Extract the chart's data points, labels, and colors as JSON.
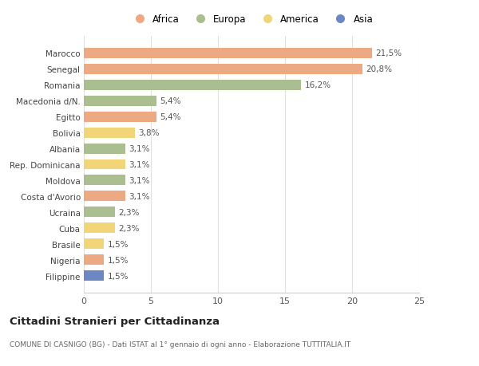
{
  "categories": [
    "Marocco",
    "Senegal",
    "Romania",
    "Macedonia d/N.",
    "Egitto",
    "Bolivia",
    "Albania",
    "Rep. Dominicana",
    "Moldova",
    "Costa d'Avorio",
    "Ucraina",
    "Cuba",
    "Brasile",
    "Nigeria",
    "Filippine"
  ],
  "values": [
    21.5,
    20.8,
    16.2,
    5.4,
    5.4,
    3.8,
    3.1,
    3.1,
    3.1,
    3.1,
    2.3,
    2.3,
    1.5,
    1.5,
    1.5
  ],
  "labels": [
    "21,5%",
    "20,8%",
    "16,2%",
    "5,4%",
    "5,4%",
    "3,8%",
    "3,1%",
    "3,1%",
    "3,1%",
    "3,1%",
    "2,3%",
    "2,3%",
    "1,5%",
    "1,5%",
    "1,5%"
  ],
  "continent": [
    "Africa",
    "Africa",
    "Europa",
    "Europa",
    "Africa",
    "America",
    "Europa",
    "America",
    "Europa",
    "Africa",
    "Europa",
    "America",
    "America",
    "Africa",
    "Asia"
  ],
  "colors": {
    "Africa": "#EDAA82",
    "Europa": "#ABBE8F",
    "America": "#F2D479",
    "Asia": "#6B88C4"
  },
  "legend_order": [
    "Africa",
    "Europa",
    "America",
    "Asia"
  ],
  "title": "Cittadini Stranieri per Cittadinanza",
  "subtitle": "COMUNE DI CASNIGO (BG) - Dati ISTAT al 1° gennaio di ogni anno - Elaborazione TUTTITALIA.IT",
  "xlim": [
    0,
    25
  ],
  "xticks": [
    0,
    5,
    10,
    15,
    20,
    25
  ],
  "background_color": "#ffffff",
  "bar_height": 0.65,
  "grid_color": "#e0e0e0"
}
